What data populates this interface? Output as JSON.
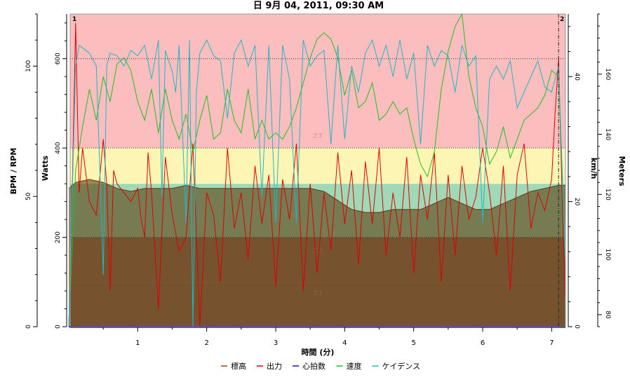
{
  "chart_data": {
    "type": "line",
    "title": "日 9月 04, 2011, 09:30 AM",
    "xlabel": "時間 (分)",
    "xlim": [
      0,
      7.2
    ],
    "xticks": [
      1,
      2,
      3,
      4,
      5,
      6,
      7
    ],
    "axes": {
      "bpm": {
        "label": "BPM / RPM",
        "ticks": [
          0,
          50,
          100
        ],
        "range": [
          0,
          120
        ]
      },
      "watts": {
        "label": "Watts",
        "ticks": [
          0,
          200,
          400,
          600
        ],
        "range": [
          0,
          700
        ]
      },
      "kmh": {
        "label": "km/h",
        "ticks": [
          0,
          20,
          40
        ],
        "range": [
          0,
          50
        ]
      },
      "meters": {
        "label": "Meters",
        "ticks": [
          80,
          100,
          120,
          140,
          160
        ],
        "range": [
          76,
          180
        ]
      }
    },
    "zones": [
      {
        "name": "Z1",
        "from": 0,
        "to": 100,
        "color": "#9c6e5a"
      },
      {
        "name": "Z2",
        "from": 100,
        "to": 200,
        "color": "#9c6e5a"
      },
      {
        "name": "",
        "from": 200,
        "to": 320,
        "color": "#9fd9b7"
      },
      {
        "name": "",
        "from": 320,
        "to": 400,
        "color": "#fdf5b4"
      },
      {
        "name": "Z7",
        "from": 400,
        "to": 700,
        "color": "#fbbdbd"
      }
    ],
    "zone_label_text": {
      "z1": "Z1",
      "z2": "Z2",
      "z7": "Z7"
    },
    "hlines_watts": [
      200,
      400,
      600
    ],
    "markers": [
      {
        "label": "1",
        "x": 0.0
      },
      {
        "label": "2",
        "x": 7.1
      }
    ],
    "series": [
      {
        "name": "標高",
        "axis": "meters",
        "color": "#8c4a1e",
        "fill": true,
        "x": [
          0.0,
          0.1,
          0.3,
          0.5,
          0.7,
          0.9,
          1.1,
          1.3,
          1.5,
          1.7,
          1.9,
          2.1,
          2.3,
          2.5,
          2.7,
          2.9,
          3.1,
          3.3,
          3.5,
          3.7,
          3.9,
          4.1,
          4.3,
          4.5,
          4.7,
          4.9,
          5.1,
          5.3,
          5.5,
          5.7,
          5.9,
          6.1,
          6.3,
          6.5,
          6.7,
          6.9,
          7.1,
          7.2
        ],
        "y": [
          122,
          124,
          125,
          124,
          122,
          121,
          122,
          122,
          122,
          123,
          122,
          122,
          122,
          122,
          122,
          122,
          122,
          122,
          122,
          121,
          118,
          115,
          114,
          114,
          115,
          115,
          115,
          117,
          119,
          117,
          115,
          115,
          117,
          119,
          121,
          122,
          123,
          123
        ]
      },
      {
        "name": "出力",
        "axis": "watts",
        "color": "#e00000",
        "x": [
          0.0,
          0.05,
          0.1,
          0.15,
          0.2,
          0.3,
          0.4,
          0.5,
          0.55,
          0.6,
          0.65,
          0.7,
          0.8,
          0.9,
          1.0,
          1.05,
          1.1,
          1.15,
          1.2,
          1.3,
          1.4,
          1.5,
          1.6,
          1.7,
          1.8,
          1.9,
          2.0,
          2.1,
          2.2,
          2.3,
          2.4,
          2.5,
          2.6,
          2.7,
          2.8,
          2.9,
          3.0,
          3.1,
          3.2,
          3.3,
          3.4,
          3.5,
          3.6,
          3.7,
          3.8,
          3.9,
          4.0,
          4.1,
          4.2,
          4.3,
          4.4,
          4.5,
          4.6,
          4.7,
          4.8,
          4.9,
          5.0,
          5.1,
          5.2,
          5.3,
          5.4,
          5.5,
          5.6,
          5.7,
          5.8,
          5.9,
          6.0,
          6.1,
          6.2,
          6.3,
          6.4,
          6.5,
          6.6,
          6.7,
          6.8,
          6.9,
          7.0,
          7.05,
          7.1,
          7.15,
          7.2
        ],
        "y": [
          0,
          300,
          680,
          300,
          400,
          280,
          250,
          420,
          320,
          80,
          350,
          320,
          300,
          280,
          310,
          240,
          200,
          390,
          300,
          40,
          380,
          250,
          170,
          200,
          410,
          0,
          300,
          250,
          100,
          400,
          220,
          300,
          150,
          360,
          230,
          340,
          90,
          330,
          240,
          410,
          80,
          320,
          120,
          300,
          170,
          390,
          230,
          350,
          140,
          370,
          230,
          400,
          160,
          300,
          200,
          380,
          120,
          340,
          240,
          390,
          100,
          340,
          160,
          360,
          240,
          290,
          400,
          300,
          160,
          360,
          80,
          340,
          410,
          220,
          300,
          260,
          330,
          480,
          600,
          300,
          50
        ]
      },
      {
        "name": "心拍数",
        "axis": "bpm",
        "color": "#1a1aa0",
        "x": [
          0.0,
          7.2
        ],
        "y": [
          0,
          0
        ]
      },
      {
        "name": "速度",
        "axis": "kmh",
        "color": "#20c020",
        "x": [
          0.0,
          0.1,
          0.2,
          0.3,
          0.4,
          0.5,
          0.6,
          0.7,
          0.8,
          0.9,
          1.0,
          1.1,
          1.2,
          1.3,
          1.4,
          1.5,
          1.6,
          1.7,
          1.8,
          1.9,
          2.0,
          2.1,
          2.2,
          2.3,
          2.4,
          2.5,
          2.6,
          2.7,
          2.8,
          2.9,
          3.0,
          3.1,
          3.2,
          3.3,
          3.4,
          3.5,
          3.6,
          3.7,
          3.8,
          3.9,
          4.0,
          4.1,
          4.2,
          4.3,
          4.4,
          4.5,
          4.6,
          4.7,
          4.8,
          4.9,
          5.0,
          5.1,
          5.2,
          5.3,
          5.4,
          5.5,
          5.6,
          5.7,
          5.8,
          5.9,
          6.0,
          6.1,
          6.2,
          6.3,
          6.4,
          6.5,
          6.6,
          6.7,
          6.8,
          6.9,
          7.0,
          7.1,
          7.2
        ],
        "y": [
          0,
          25,
          32,
          38,
          33,
          40,
          36,
          42,
          43,
          41,
          36,
          33,
          38,
          31,
          38,
          33,
          30,
          34,
          28,
          33,
          37,
          30,
          31,
          38,
          33,
          31,
          38,
          30,
          33,
          30,
          31,
          30,
          32,
          35,
          39,
          43,
          46,
          47,
          46,
          43,
          37,
          41,
          35,
          36,
          39,
          33,
          34,
          36,
          34,
          35,
          30,
          26,
          24,
          28,
          38,
          44,
          48,
          50,
          40,
          35,
          32,
          26,
          28,
          32,
          27,
          30,
          33,
          34,
          35,
          37,
          41,
          40,
          10
        ]
      },
      {
        "name": "ケイデンス",
        "axis": "bpm",
        "color": "#20b8c8",
        "x": [
          0.0,
          0.1,
          0.15,
          0.2,
          0.3,
          0.4,
          0.45,
          0.5,
          0.55,
          0.6,
          0.7,
          0.8,
          0.9,
          1.0,
          1.1,
          1.2,
          1.3,
          1.35,
          1.4,
          1.5,
          1.55,
          1.6,
          1.7,
          1.75,
          1.8,
          1.85,
          1.9,
          2.0,
          2.1,
          2.2,
          2.3,
          2.4,
          2.5,
          2.6,
          2.7,
          2.8,
          2.9,
          3.0,
          3.1,
          3.2,
          3.3,
          3.4,
          3.5,
          3.6,
          3.7,
          3.8,
          3.9,
          4.0,
          4.1,
          4.2,
          4.3,
          4.4,
          4.5,
          4.6,
          4.7,
          4.8,
          4.9,
          5.0,
          5.1,
          5.2,
          5.3,
          5.4,
          5.5,
          5.6,
          5.7,
          5.8,
          5.9,
          6.0,
          6.1,
          6.2,
          6.3,
          6.4,
          6.5,
          6.6,
          6.7,
          6.8,
          6.9,
          7.0,
          7.1,
          7.2
        ],
        "y": [
          0,
          100,
          108,
          107,
          105,
          100,
          60,
          20,
          100,
          105,
          104,
          100,
          106,
          104,
          108,
          95,
          110,
          50,
          106,
          98,
          90,
          108,
          40,
          110,
          0,
          90,
          105,
          110,
          104,
          102,
          80,
          105,
          110,
          100,
          108,
          50,
          108,
          40,
          108,
          95,
          40,
          110,
          100,
          104,
          106,
          70,
          108,
          72,
          100,
          90,
          105,
          110,
          100,
          108,
          96,
          110,
          95,
          105,
          70,
          108,
          100,
          106,
          104,
          90,
          108,
          100,
          104,
          40,
          95,
          100,
          95,
          102,
          84,
          90,
          96,
          102,
          92,
          90,
          100,
          25
        ]
      }
    ]
  }
}
